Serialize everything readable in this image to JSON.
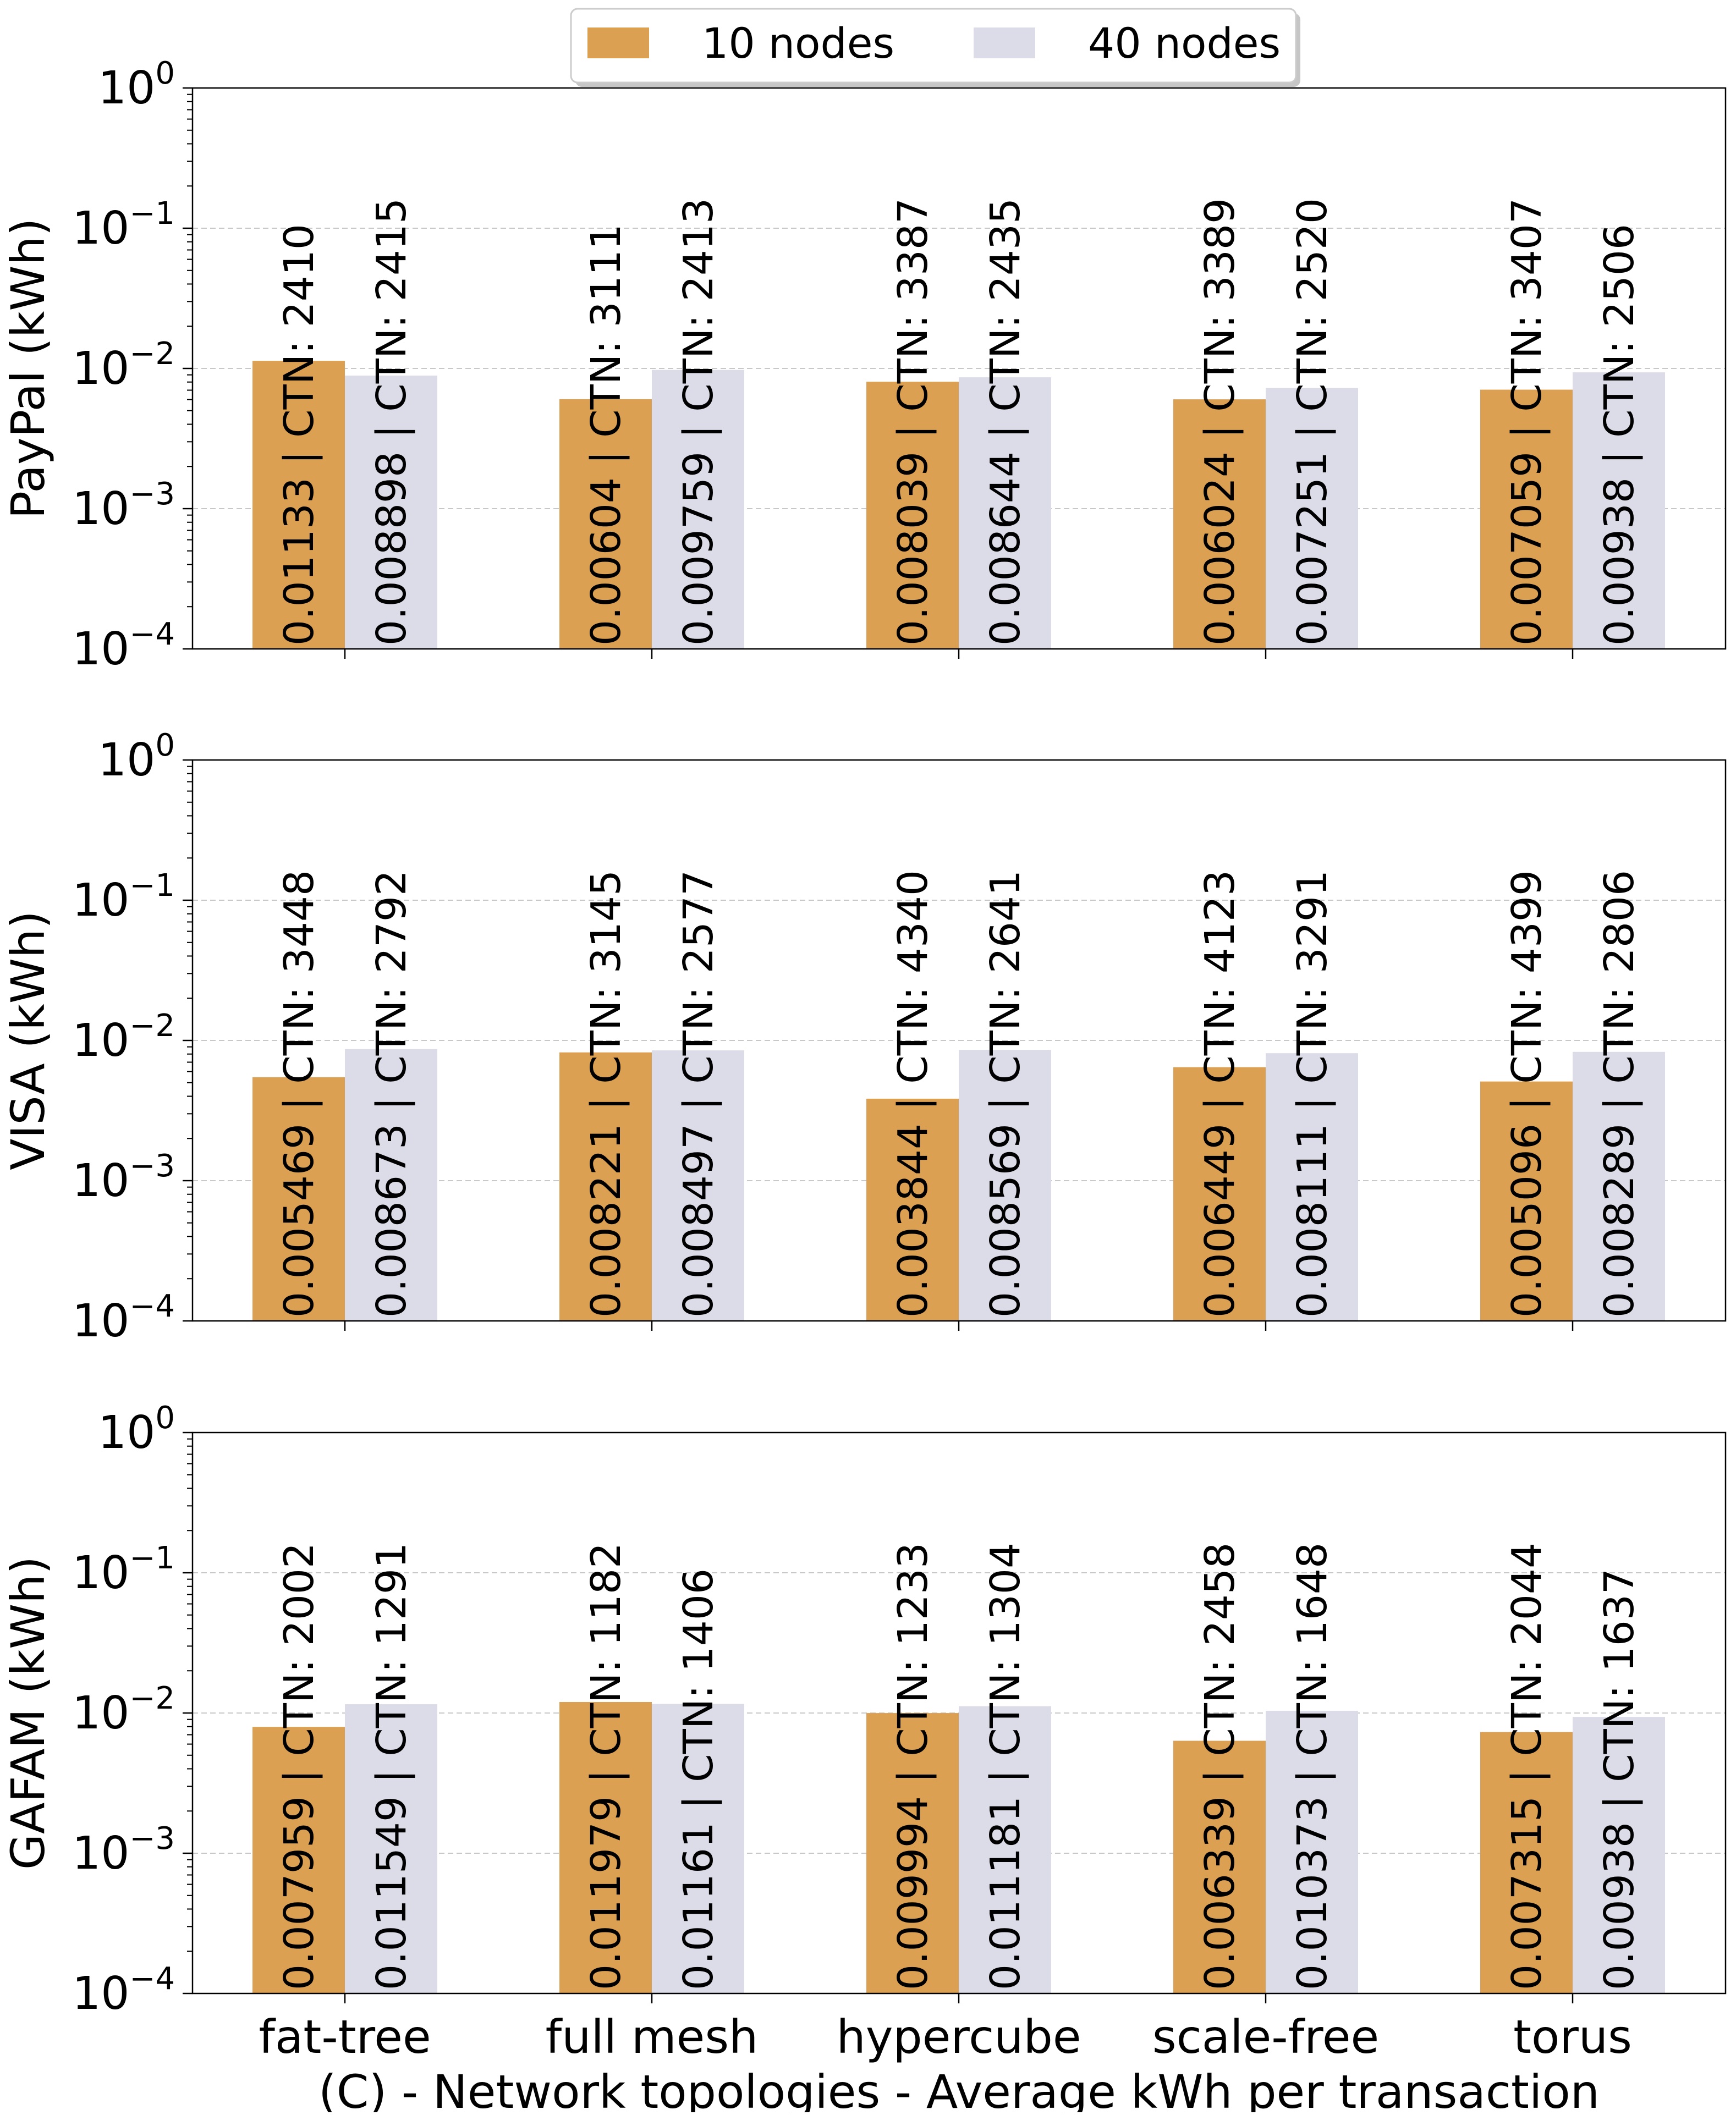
{
  "chart_data": {
    "type": "bar",
    "y_scale": "log",
    "ylim": [
      0.0001,
      1
    ],
    "grid": "horizontal dashed",
    "legend_placement": "top-center",
    "categories": [
      "fat-tree",
      "full mesh",
      "hypercube",
      "scale-free",
      "torus"
    ],
    "xlabel": "(C) - Network topologies - Average kWh per transaction",
    "ytick_labels": [
      {
        "base": "10",
        "exp": "0"
      },
      {
        "base": "10",
        "exp": "−1"
      },
      {
        "base": "10",
        "exp": "−2"
      },
      {
        "base": "10",
        "exp": "−3"
      },
      {
        "base": "10",
        "exp": "−4"
      }
    ],
    "legend": [
      {
        "label": "10 nodes",
        "color": "#dca052"
      },
      {
        "label": "40 nodes",
        "color": "#dbdce8"
      }
    ],
    "panels": [
      {
        "ylabel": "PayPal (kWh)",
        "series": [
          {
            "name": "10 nodes",
            "values": [
              0.01133,
              0.00604,
              0.008039,
              0.006024,
              0.007059
            ],
            "labels": [
              "0.01133 | CTN: 2410",
              "0.00604 | CTN: 3111",
              "0.008039 | CTN: 3387",
              "0.006024 | CTN: 3389",
              "0.007059 | CTN: 3407"
            ]
          },
          {
            "name": "40 nodes",
            "values": [
              0.008898,
              0.009759,
              0.008644,
              0.007251,
              0.00938
            ],
            "labels": [
              "0.008898 | CTN: 2415",
              "0.009759 | CTN: 2413",
              "0.008644 | CTN: 2435",
              "0.007251 | CTN: 2520",
              "0.00938 | CTN: 2506"
            ]
          }
        ]
      },
      {
        "ylabel": "VISA (kWh)",
        "series": [
          {
            "name": "10 nodes",
            "values": [
              0.005469,
              0.008221,
              0.003844,
              0.006449,
              0.005096
            ],
            "labels": [
              "0.005469 | CTN: 3448",
              "0.008221 | CTN: 3145",
              "0.003844 | CTN: 4340",
              "0.006449 | CTN: 4123",
              "0.005096 | CTN: 4399"
            ]
          },
          {
            "name": "40 nodes",
            "values": [
              0.008673,
              0.008497,
              0.008569,
              0.008111,
              0.008289
            ],
            "labels": [
              "0.008673 | CTN: 2792",
              "0.008497 | CTN: 2577",
              "0.008569 | CTN: 2641",
              "0.008111 | CTN: 3291",
              "0.008289 | CTN: 2806"
            ]
          }
        ]
      },
      {
        "ylabel": "GAFAM (kWh)",
        "series": [
          {
            "name": "10 nodes",
            "values": [
              0.007959,
              0.011979,
              0.009994,
              0.006339,
              0.007315
            ],
            "labels": [
              "0.007959 | CTN: 2002",
              "0.011979 | CTN: 1182",
              "0.009994 | CTN: 1233",
              "0.006339 | CTN: 2458",
              "0.007315 | CTN: 2044"
            ]
          },
          {
            "name": "40 nodes",
            "values": [
              0.011549,
              0.01161,
              0.011181,
              0.010373,
              0.00938
            ],
            "labels": [
              "0.011549 | CTN: 1291",
              "0.01161 | CTN: 1406",
              "0.011181 | CTN: 1304",
              "0.010373 | CTN: 1648",
              "0.00938 | CTN: 1637"
            ]
          }
        ]
      }
    ]
  }
}
